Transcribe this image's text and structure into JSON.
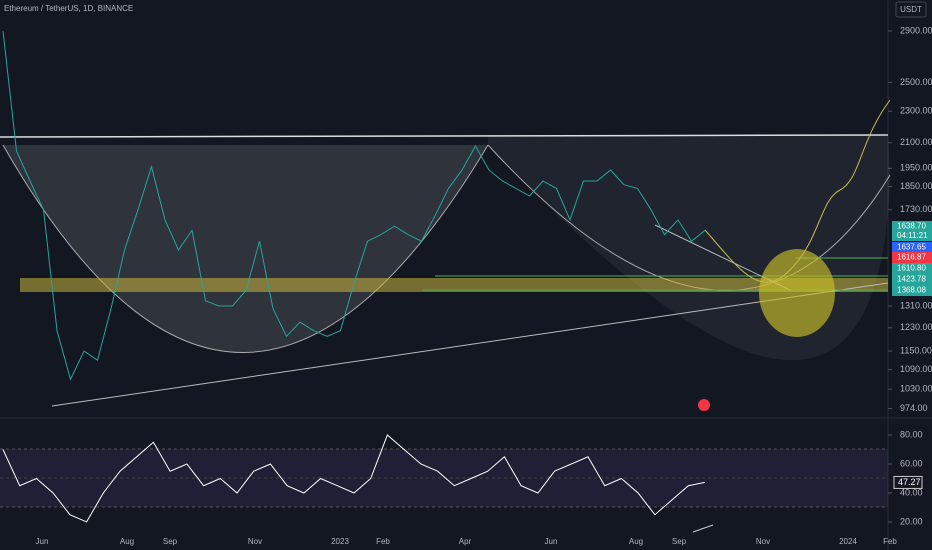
{
  "header": {
    "title": "Ethereum / TetherUS, 1D, BINANCE",
    "currency": "USDT"
  },
  "chart_data": [
    {
      "type": "line",
      "log": true,
      "ylim": [
        956,
        3172
      ],
      "yticks": [
        {
          "value": 2900,
          "label": "2900.00"
        },
        {
          "value": 2500,
          "label": "2500.00"
        },
        {
          "value": 2300,
          "label": "2300.00"
        },
        {
          "value": 2100,
          "label": "2100.00"
        },
        {
          "value": 1950,
          "label": "1950.00"
        },
        {
          "value": 1850,
          "label": "1850.00"
        },
        {
          "value": 1730,
          "label": "1730.00"
        },
        {
          "value": 1310,
          "label": "1310.00"
        },
        {
          "value": 1230,
          "label": "1230.00"
        },
        {
          "value": 1150,
          "label": "1150.00"
        },
        {
          "value": 1090,
          "label": "1090.00"
        },
        {
          "value": 1030,
          "label": "1030.00"
        },
        {
          "value": 974,
          "label": "974.00"
        }
      ],
      "series": [
        {
          "color": "#26a69a",
          "values": [
            2900,
            2050,
            1880,
            1730,
            1220,
            1060,
            1150,
            1120,
            1300,
            1540,
            1730,
            1960,
            1680,
            1540,
            1630,
            1330,
            1310,
            1310,
            1370,
            1580,
            1300,
            1200,
            1250,
            1220,
            1200,
            1220,
            1400,
            1580,
            1610,
            1650,
            1610,
            1580,
            1700,
            1840,
            1940,
            2080,
            1940,
            1880,
            1840,
            1800,
            1880,
            1840,
            1680,
            1880,
            1880,
            1940,
            1860,
            1840,
            1730,
            1610,
            1680,
            1580,
            1630
          ]
        }
      ],
      "price_labels": [
        {
          "value": 1638.7,
          "label": "1638.70",
          "sub": "04:11:21",
          "color": "#26a69a"
        },
        {
          "value": 1637.65,
          "label": "1637.65",
          "color": "#2962ff"
        },
        {
          "value": 1616.87,
          "label": "1616.87",
          "color": "#f23645"
        },
        {
          "value": 1610.8,
          "label": "1610.80",
          "color": "#26a69a"
        },
        {
          "value": 1423.78,
          "label": "1423.78",
          "color": "#26a69a"
        },
        {
          "value": 1368.08,
          "label": "1368.08",
          "color": "#26a69a"
        }
      ],
      "x_labels": [
        "Jun",
        "Aug",
        "Sep",
        "Nov",
        "2023",
        "Feb",
        "Apr",
        "Jun",
        "Aug",
        "Sep",
        "Nov",
        "2024",
        "Feb"
      ]
    },
    {
      "type": "line",
      "ylim": [
        2,
        89
      ],
      "yticks": [
        {
          "value": 80,
          "label": "80.00"
        },
        {
          "value": 60,
          "label": "60.00"
        },
        {
          "value": 40,
          "label": "40.00"
        },
        {
          "value": 20,
          "label": "20.00"
        }
      ],
      "series": [
        {
          "color": "#ffffff",
          "values": [
            70,
            45,
            50,
            40,
            25,
            20,
            40,
            55,
            65,
            75,
            55,
            60,
            45,
            50,
            40,
            55,
            60,
            45,
            40,
            50,
            45,
            40,
            50,
            80,
            70,
            60,
            55,
            45,
            50,
            55,
            65,
            45,
            40,
            55,
            60,
            65,
            45,
            50,
            40,
            25,
            35,
            45,
            47.27
          ]
        }
      ],
      "last_label": {
        "value": 47.27,
        "label": "47.27"
      }
    }
  ]
}
